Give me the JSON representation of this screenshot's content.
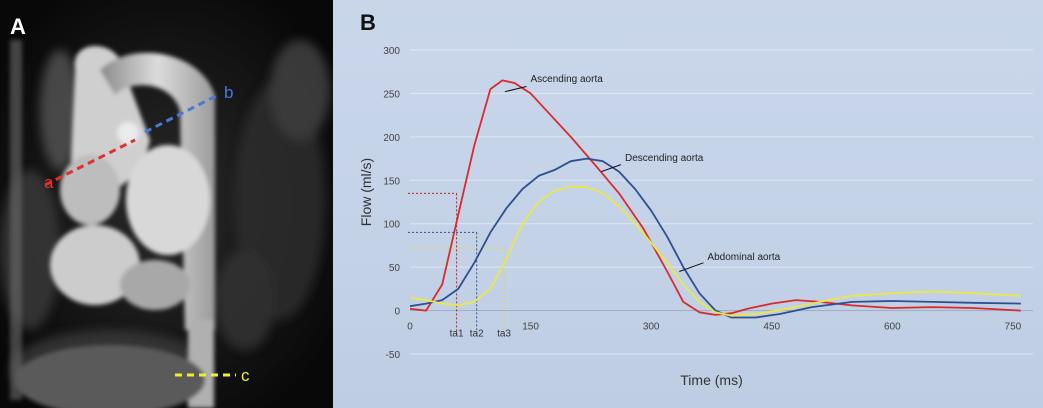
{
  "panel_a": {
    "letter": "A",
    "labels": {
      "a": "a",
      "b": "b",
      "c": "c"
    },
    "colors": {
      "a": "#e03030",
      "b": "#4a78d8",
      "c": "#f0ef2a"
    }
  },
  "panel_b": {
    "letter": "B"
  },
  "chart_data": {
    "type": "line",
    "xlabel": "Time (ms)",
    "ylabel": "Flow (ml/s)",
    "xlim": [
      0,
      775
    ],
    "ylim": [
      -50,
      300
    ],
    "x_ticks": [
      0,
      150,
      300,
      450,
      600,
      750
    ],
    "y_ticks": [
      -50,
      0,
      50,
      100,
      150,
      200,
      250,
      300
    ],
    "grid": "horizontal",
    "series": [
      {
        "name": "Ascending aorta",
        "color": "#d92b2b",
        "x": [
          0,
          20,
          40,
          60,
          80,
          100,
          115,
          130,
          150,
          170,
          200,
          230,
          260,
          290,
          320,
          340,
          360,
          380,
          400,
          420,
          450,
          480,
          510,
          550,
          600,
          650,
          700,
          760
        ],
        "y": [
          2,
          0,
          30,
          110,
          190,
          255,
          265,
          262,
          250,
          230,
          200,
          168,
          135,
          95,
          45,
          10,
          -2,
          -5,
          -3,
          2,
          8,
          12,
          10,
          6,
          3,
          4,
          3,
          0
        ]
      },
      {
        "name": "Descending aorta",
        "color": "#2f4f8f",
        "x": [
          0,
          20,
          40,
          60,
          80,
          100,
          120,
          140,
          160,
          180,
          200,
          220,
          240,
          260,
          280,
          300,
          320,
          340,
          360,
          380,
          400,
          430,
          460,
          500,
          550,
          600,
          650,
          700,
          760
        ],
        "y": [
          5,
          8,
          12,
          25,
          55,
          90,
          118,
          140,
          155,
          162,
          172,
          175,
          172,
          160,
          140,
          115,
          85,
          50,
          20,
          0,
          -8,
          -8,
          -4,
          4,
          10,
          11,
          10,
          9,
          8
        ]
      },
      {
        "name": "Abdominal aorta",
        "color": "#e8e84a",
        "x": [
          0,
          20,
          40,
          60,
          80,
          100,
          120,
          140,
          160,
          180,
          200,
          220,
          240,
          260,
          280,
          300,
          320,
          340,
          360,
          380,
          400,
          430,
          470,
          510,
          550,
          600,
          650,
          700,
          760
        ],
        "y": [
          15,
          12,
          8,
          6,
          10,
          25,
          60,
          100,
          125,
          138,
          143,
          142,
          135,
          120,
          100,
          78,
          55,
          30,
          10,
          -2,
          -6,
          -4,
          2,
          10,
          17,
          20,
          22,
          20,
          17
        ]
      }
    ],
    "annotations": [
      {
        "text": "Ascending aorta",
        "series": 0
      },
      {
        "text": "Descending aorta",
        "series": 1
      },
      {
        "text": "Abdominal aorta",
        "series": 2
      }
    ],
    "reference_markers": [
      {
        "label": "ta1",
        "x": 58,
        "y": 135,
        "color": "#c02020"
      },
      {
        "label": "ta2",
        "x": 83,
        "y": 90,
        "color": "#2f4f8f"
      },
      {
        "label": "ta3",
        "x": 117,
        "y": 72,
        "color": "#d8d84a"
      }
    ]
  }
}
